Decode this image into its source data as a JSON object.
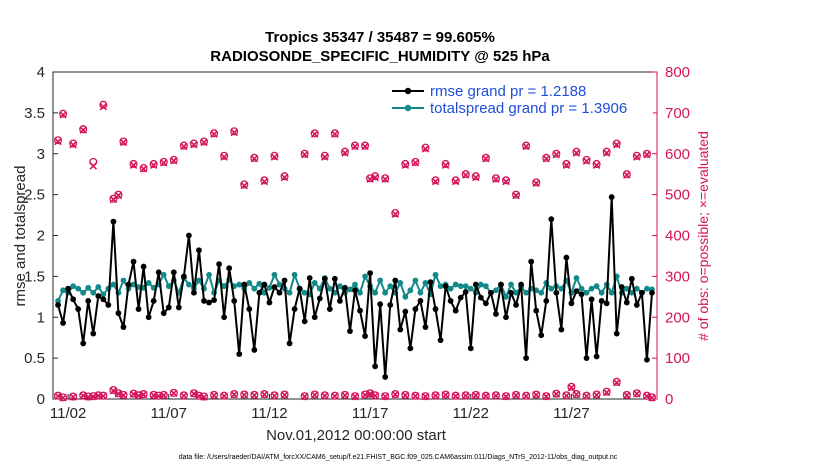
{
  "chart_data": {
    "type": "line",
    "title": "Tropics 35347 / 35487 = 99.605%",
    "subtitle": "RADIOSONDE_SPECIFIC_HUMIDITY @ 525 hPa",
    "xlabel": "Nov.01,2012 00:00:00 start",
    "ylabel": "rmse and totalspread",
    "ylabel_right": "# of obs: o=possible; ×=evaluated",
    "x_tick_labels": [
      "11/02",
      "11/07",
      "11/12",
      "11/17",
      "11/22",
      "11/27"
    ],
    "x_tick_values": [
      1.5,
      6.5,
      11.5,
      16.5,
      21.5,
      26.5
    ],
    "xlim": [
      0.75,
      30.75
    ],
    "ylim": [
      0,
      4
    ],
    "y_ticks": [
      0,
      0.5,
      1,
      1.5,
      2,
      2.5,
      3,
      3.5,
      4
    ],
    "y_tick_labels": [
      "0",
      "0.5",
      "1",
      "1.5",
      "2",
      "2.5",
      "3",
      "3.5",
      "4"
    ],
    "y2lim": [
      0,
      800
    ],
    "y2_ticks": [
      0,
      100,
      200,
      300,
      400,
      500,
      600,
      700,
      800
    ],
    "y2_tick_labels": [
      "0",
      "100",
      "200",
      "300",
      "400",
      "500",
      "600",
      "700",
      "800"
    ],
    "footer": "data file: /Users/raeder/DAI/ATM_forcXX/CAM6_setup/f.e21.FHIST_BGC.f09_025.CAM6assim.011/Diags_NTrS_2012-11/obs_diag_output.nc",
    "colors": {
      "rmse": "#000000",
      "spread": "#138a8a",
      "obs": "#d4145a",
      "legend_text": "#1f4fd8"
    },
    "series": [
      {
        "name": "rmse",
        "legend": "rmse grand pr = 1.2188",
        "color": "#000000",
        "x": [
          1.0,
          1.25,
          1.5,
          1.75,
          2.0,
          2.25,
          2.5,
          2.75,
          3.0,
          3.25,
          3.5,
          3.75,
          4.0,
          4.25,
          4.5,
          4.75,
          5.0,
          5.25,
          5.5,
          5.75,
          6.0,
          6.25,
          6.5,
          6.75,
          7.0,
          7.25,
          7.5,
          7.75,
          8.0,
          8.25,
          8.5,
          8.75,
          9.0,
          9.25,
          9.5,
          9.75,
          10.0,
          10.25,
          10.5,
          10.75,
          11.0,
          11.25,
          11.5,
          11.75,
          12.0,
          12.25,
          12.5,
          12.75,
          13.0,
          13.25,
          13.5,
          13.75,
          14.0,
          14.25,
          14.5,
          14.75,
          15.0,
          15.25,
          15.5,
          15.75,
          16.0,
          16.25,
          16.5,
          16.75,
          17.0,
          17.25,
          17.5,
          17.75,
          18.0,
          18.25,
          18.5,
          18.75,
          19.0,
          19.25,
          19.5,
          19.75,
          20.0,
          20.25,
          20.5,
          20.75,
          21.0,
          21.25,
          21.5,
          21.75,
          22.0,
          22.25,
          22.5,
          22.75,
          23.0,
          23.25,
          23.5,
          23.75,
          24.0,
          24.25,
          24.5,
          24.75,
          25.0,
          25.25,
          25.5,
          25.75,
          26.0,
          26.25,
          26.5,
          26.75,
          27.0,
          27.25,
          27.5,
          27.75,
          28.0,
          28.25,
          28.5,
          28.75,
          29.0,
          29.25,
          29.5,
          29.75,
          30.0,
          30.25,
          30.5
        ],
        "values": [
          1.15,
          0.93,
          1.35,
          1.22,
          1.1,
          0.68,
          1.2,
          0.8,
          1.26,
          1.22,
          1.15,
          2.17,
          1.05,
          0.88,
          1.4,
          1.68,
          1.1,
          1.62,
          1.0,
          1.2,
          1.55,
          1.05,
          1.12,
          1.55,
          1.12,
          1.5,
          2.0,
          1.3,
          1.82,
          1.2,
          1.18,
          1.21,
          1.65,
          1.0,
          1.6,
          1.2,
          0.55,
          1.4,
          1.1,
          0.6,
          1.3,
          1.4,
          1.18,
          1.37,
          1.3,
          1.45,
          0.68,
          1.1,
          1.35,
          0.95,
          1.48,
          1.0,
          1.23,
          1.47,
          1.1,
          1.47,
          1.2,
          1.36,
          0.83,
          1.33,
          1.08,
          0.77,
          1.54,
          0.4,
          1.16,
          0.27,
          1.15,
          1.45,
          0.85,
          1.07,
          0.62,
          1.1,
          1.2,
          0.88,
          1.43,
          1.1,
          0.72,
          1.38,
          1.2,
          1.08,
          1.24,
          1.31,
          0.62,
          1.4,
          1.24,
          1.17,
          1.3,
          1.04,
          1.4,
          1.0,
          1.3,
          1.15,
          1.4,
          0.5,
          1.68,
          1.08,
          0.78,
          1.2,
          2.2,
          1.3,
          0.85,
          1.73,
          1.17,
          1.32,
          1.28,
          0.5,
          1.22,
          0.52,
          1.2,
          1.17,
          2.47,
          0.8,
          1.37,
          1.18,
          1.47,
          1.15,
          1.3,
          0.48,
          1.3
        ]
      },
      {
        "name": "totalspread",
        "legend": "totalspread grand pr = 1.3906",
        "color": "#138a8a",
        "x": [
          1.0,
          1.25,
          1.5,
          1.75,
          2.0,
          2.25,
          2.5,
          2.75,
          3.0,
          3.25,
          3.5,
          3.75,
          4.0,
          4.25,
          4.5,
          4.75,
          5.0,
          5.25,
          5.5,
          5.75,
          6.0,
          6.25,
          6.5,
          6.75,
          7.0,
          7.25,
          7.5,
          7.75,
          8.0,
          8.25,
          8.5,
          8.75,
          9.0,
          9.25,
          9.5,
          9.75,
          10.0,
          10.25,
          10.5,
          10.75,
          11.0,
          11.25,
          11.5,
          11.75,
          12.0,
          12.25,
          12.5,
          12.75,
          13.0,
          13.25,
          13.5,
          13.75,
          14.0,
          14.25,
          14.5,
          14.75,
          15.0,
          15.25,
          15.5,
          15.75,
          16.0,
          16.25,
          16.5,
          16.75,
          17.0,
          17.25,
          17.5,
          17.75,
          18.0,
          18.25,
          18.5,
          18.75,
          19.0,
          19.25,
          19.5,
          19.75,
          20.0,
          20.25,
          20.5,
          20.75,
          21.0,
          21.25,
          21.5,
          21.75,
          22.0,
          22.25,
          22.5,
          22.75,
          23.0,
          23.25,
          23.5,
          23.75,
          24.0,
          24.25,
          24.5,
          24.75,
          25.0,
          25.25,
          25.5,
          25.75,
          26.0,
          26.25,
          26.5,
          26.75,
          27.0,
          27.25,
          27.5,
          27.75,
          28.0,
          28.25,
          28.5,
          28.75,
          29.0,
          29.25,
          29.5,
          29.75,
          30.0,
          30.25,
          30.5
        ],
        "values": [
          1.2,
          1.33,
          1.3,
          1.38,
          1.35,
          1.3,
          1.36,
          1.3,
          1.37,
          1.28,
          1.35,
          1.4,
          1.3,
          1.45,
          1.35,
          1.4,
          1.37,
          1.36,
          1.42,
          1.36,
          1.4,
          1.52,
          1.38,
          1.45,
          1.3,
          1.48,
          1.4,
          1.35,
          1.45,
          1.35,
          1.52,
          1.3,
          1.45,
          1.38,
          1.46,
          1.38,
          1.4,
          1.35,
          1.42,
          1.35,
          1.41,
          1.3,
          1.36,
          1.52,
          1.4,
          1.35,
          1.3,
          1.52,
          1.35,
          1.3,
          1.28,
          1.42,
          1.35,
          1.48,
          1.35,
          1.3,
          1.38,
          1.3,
          1.34,
          1.4,
          1.3,
          1.5,
          1.38,
          1.3,
          1.45,
          1.3,
          1.38,
          1.3,
          1.42,
          1.25,
          1.33,
          1.45,
          1.3,
          1.42,
          1.28,
          1.52,
          1.38,
          1.4,
          1.35,
          1.4,
          1.38,
          1.38,
          1.35,
          1.3,
          1.4,
          1.38,
          1.3,
          1.33,
          1.4,
          1.25,
          1.4,
          1.3,
          1.37,
          1.3,
          1.35,
          1.33,
          1.3,
          1.42,
          1.35,
          1.38,
          1.35,
          1.45,
          1.3,
          1.48,
          1.35,
          1.3,
          1.35,
          1.38,
          1.3,
          1.4,
          1.3,
          1.5,
          1.3,
          1.35,
          1.3,
          1.35,
          1.3,
          1.35,
          1.34
        ]
      },
      {
        "name": "obs possible",
        "axis": "right",
        "marker": "o",
        "color": "#d4145a",
        "x": [
          1.0,
          1.25,
          1.75,
          2.25,
          2.75,
          3.25,
          3.75,
          4.0,
          4.25,
          4.75,
          5.25,
          5.75,
          6.25,
          6.75,
          7.25,
          7.75,
          8.25,
          8.75,
          9.25,
          9.75,
          10.25,
          10.75,
          11.25,
          11.75,
          12.25,
          13.25,
          13.75,
          14.25,
          14.75,
          15.25,
          15.75,
          16.25,
          16.5,
          16.75,
          17.25,
          17.75,
          18.25,
          18.75,
          19.25,
          19.75,
          20.25,
          20.75,
          21.25,
          21.75,
          22.25,
          22.75,
          23.25,
          23.75,
          24.25,
          24.75,
          25.25,
          25.75,
          26.25,
          26.75,
          27.25,
          27.75,
          28.25,
          28.75,
          29.25,
          29.75,
          30.25
        ],
        "values": [
          633,
          698,
          625,
          660,
          580,
          720,
          490,
          500,
          630,
          575,
          565,
          575,
          580,
          585,
          620,
          625,
          630,
          650,
          595,
          655,
          525,
          590,
          535,
          595,
          545,
          600,
          650,
          595,
          650,
          605,
          620,
          620,
          540,
          545,
          540,
          455,
          575,
          580,
          615,
          535,
          575,
          535,
          550,
          545,
          590,
          540,
          535,
          500,
          620,
          530,
          590,
          600,
          575,
          605,
          585,
          575,
          605,
          625,
          550,
          595,
          600
        ]
      },
      {
        "name": "obs evaluated",
        "axis": "right",
        "marker": "x",
        "color": "#d4145a",
        "x": [
          1.0,
          1.25,
          1.75,
          2.25,
          2.75,
          3.25,
          3.75,
          4.0,
          4.25,
          4.75,
          5.25,
          5.75,
          6.25,
          6.75,
          7.25,
          7.75,
          8.25,
          8.75,
          9.25,
          9.75,
          10.25,
          10.75,
          11.25,
          11.75,
          12.25,
          13.25,
          13.75,
          14.25,
          14.75,
          15.25,
          15.75,
          16.25,
          16.5,
          16.75,
          17.25,
          17.75,
          18.25,
          18.75,
          19.25,
          19.75,
          20.25,
          20.75,
          21.25,
          21.75,
          22.25,
          22.75,
          23.25,
          23.75,
          24.25,
          24.75,
          25.25,
          25.75,
          26.25,
          26.75,
          27.25,
          27.75,
          28.25,
          28.75,
          29.25,
          29.75,
          30.25
        ],
        "values": [
          630,
          695,
          622,
          658,
          570,
          715,
          488,
          498,
          628,
          572,
          563,
          572,
          578,
          583,
          618,
          622,
          628,
          648,
          592,
          652,
          522,
          588,
          532,
          592,
          542,
          598,
          648,
          592,
          648,
          602,
          618,
          618,
          538,
          542,
          538,
          452,
          572,
          578,
          612,
          532,
          572,
          532,
          548,
          542,
          588,
          538,
          532,
          498,
          618,
          528,
          588,
          598,
          572,
          602,
          582,
          572,
          602,
          622,
          548,
          592,
          598
        ]
      },
      {
        "name": "obs low possible",
        "axis": "right",
        "marker": "o",
        "color": "#d4145a",
        "x": [
          1.0,
          1.25,
          1.75,
          2.25,
          2.5,
          2.75,
          3.0,
          3.25,
          3.75,
          4.0,
          4.25,
          4.75,
          5.0,
          5.25,
          5.75,
          6.0,
          6.25,
          6.75,
          7.25,
          7.75,
          8.0,
          8.25,
          8.75,
          9.25,
          9.75,
          10.25,
          10.75,
          11.25,
          11.75,
          12.25,
          13.25,
          13.75,
          14.25,
          14.75,
          15.25,
          15.75,
          16.25,
          16.5,
          16.75,
          17.25,
          17.75,
          18.25,
          18.75,
          19.25,
          19.75,
          20.25,
          20.75,
          21.25,
          21.75,
          22.25,
          22.75,
          23.25,
          23.75,
          24.25,
          24.75,
          25.25,
          25.75,
          26.25,
          26.5,
          26.75,
          27.25,
          27.75,
          28.25,
          28.75,
          29.25,
          29.75,
          30.25,
          30.5
        ],
        "values": [
          8,
          4,
          6,
          9,
          6,
          7,
          9,
          8,
          22,
          14,
          10,
          13,
          9,
          12,
          10,
          8,
          10,
          15,
          9,
          14,
          8,
          6,
          10,
          8,
          12,
          11,
          10,
          12,
          9,
          11,
          7,
          11,
          9,
          8,
          10,
          7,
          11,
          14,
          9,
          7,
          12,
          10,
          8,
          7,
          9,
          11,
          8,
          9,
          10,
          8,
          9,
          7,
          10,
          8,
          11,
          7,
          13,
          9,
          30,
          12,
          8,
          11,
          18,
          42,
          10,
          14,
          8,
          4
        ]
      },
      {
        "name": "obs low evaluated",
        "axis": "right",
        "marker": "x",
        "color": "#d4145a",
        "x": [
          1.0,
          1.25,
          1.75,
          2.25,
          2.5,
          2.75,
          3.0,
          3.25,
          3.75,
          4.0,
          4.25,
          4.75,
          5.0,
          5.25,
          5.75,
          6.0,
          6.25,
          6.75,
          7.25,
          7.75,
          8.0,
          8.25,
          8.75,
          9.25,
          9.75,
          10.25,
          10.75,
          11.25,
          11.75,
          12.25,
          13.25,
          13.75,
          14.25,
          14.75,
          15.25,
          15.75,
          16.25,
          16.5,
          16.75,
          17.25,
          17.75,
          18.25,
          18.75,
          19.25,
          19.75,
          20.25,
          20.75,
          21.25,
          21.75,
          22.25,
          22.75,
          23.25,
          23.75,
          24.25,
          24.75,
          25.25,
          25.75,
          26.25,
          26.5,
          26.75,
          27.25,
          27.75,
          28.25,
          28.75,
          29.25,
          29.75,
          30.25,
          30.5
        ],
        "values": [
          7,
          3,
          5,
          8,
          5,
          6,
          8,
          7,
          20,
          13,
          9,
          12,
          8,
          11,
          9,
          7,
          9,
          14,
          8,
          13,
          7,
          5,
          9,
          7,
          11,
          10,
          9,
          11,
          8,
          10,
          6,
          10,
          8,
          7,
          9,
          6,
          10,
          13,
          8,
          6,
          11,
          9,
          7,
          6,
          8,
          10,
          7,
          8,
          9,
          7,
          8,
          6,
          9,
          7,
          10,
          6,
          12,
          8,
          28,
          11,
          7,
          10,
          16,
          40,
          9,
          13,
          7,
          3
        ]
      }
    ]
  }
}
